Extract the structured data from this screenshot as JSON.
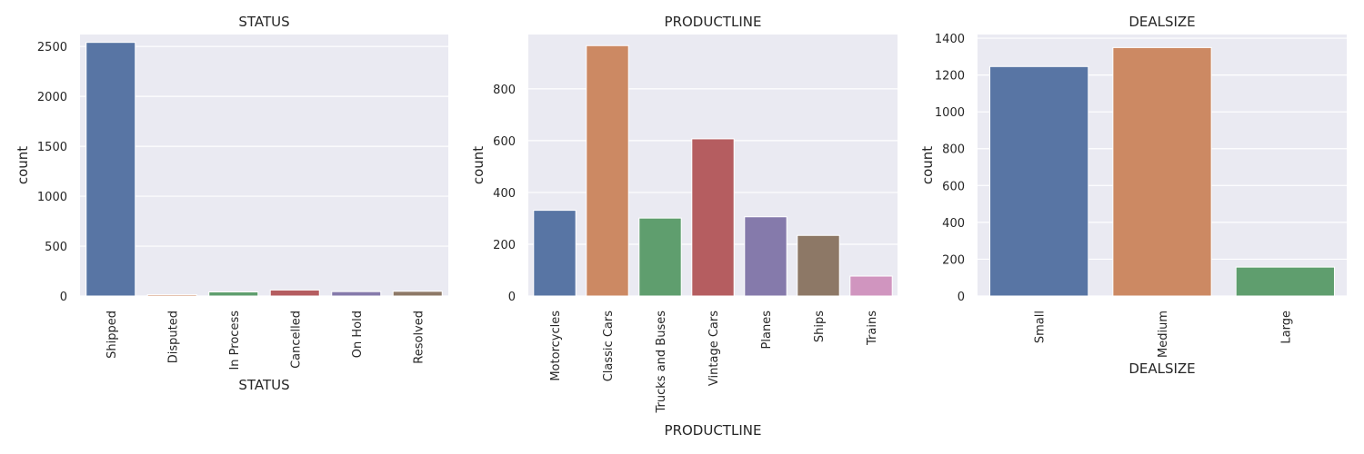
{
  "chart_data": [
    {
      "type": "bar",
      "title": "STATUS",
      "xlabel": "STATUS",
      "ylabel": "count",
      "categories": [
        "Shipped",
        "Disputed",
        "In Process",
        "Cancelled",
        "On Hold",
        "Resolved"
      ],
      "values": [
        2541,
        14,
        41,
        60,
        44,
        47
      ],
      "ylim": [
        0,
        2620
      ],
      "yticks": [
        0,
        500,
        1000,
        1500,
        2000,
        2500
      ],
      "grid": true,
      "colors": [
        "#5875a4",
        "#cc8963",
        "#5f9e6e",
        "#b55d60",
        "#857aab",
        "#8d7866"
      ]
    },
    {
      "type": "bar",
      "title": "PRODUCTLINE",
      "xlabel": "PRODUCTLINE",
      "ylabel": "count",
      "categories": [
        "Motorcycles",
        "Classic Cars",
        "Trucks and Buses",
        "Vintage Cars",
        "Planes",
        "Ships",
        "Trains"
      ],
      "values": [
        331,
        967,
        301,
        607,
        306,
        234,
        77
      ],
      "ylim": [
        0,
        1010
      ],
      "yticks": [
        0,
        200,
        400,
        600,
        800
      ],
      "grid": true,
      "colors": [
        "#5875a4",
        "#cc8963",
        "#5f9e6e",
        "#b55d60",
        "#857aab",
        "#8d7866",
        "#d095bf"
      ]
    },
    {
      "type": "bar",
      "title": "DEALSIZE",
      "xlabel": "DEALSIZE",
      "ylabel": "count",
      "categories": [
        "Small",
        "Medium",
        "Large"
      ],
      "values": [
        1246,
        1349,
        157
      ],
      "ylim": [
        0,
        1420
      ],
      "yticks": [
        0,
        200,
        400,
        600,
        800,
        1000,
        1200,
        1400
      ],
      "grid": true,
      "colors": [
        "#5875a4",
        "#cc8963",
        "#5f9e6e"
      ]
    }
  ],
  "theme": {
    "plot_background": "#eaeaf2",
    "grid_color": "#ffffff",
    "text_color": "#262626"
  }
}
